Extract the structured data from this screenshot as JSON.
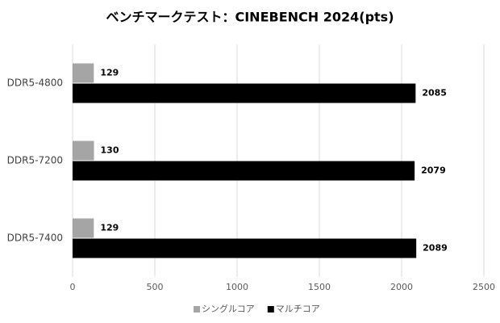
{
  "chart_data": {
    "type": "bar",
    "orientation": "horizontal",
    "title": "ベンチマークテスト：CINEBENCH 2024(pts)",
    "categories": [
      "DDR5-4800",
      "DDR5-7200",
      "DDR5-7400"
    ],
    "series": [
      {
        "name": "シングルコア",
        "color": "#a5a5a5",
        "values": [
          129,
          130,
          129
        ]
      },
      {
        "name": "マルチコア",
        "color": "#000000",
        "values": [
          2085,
          2079,
          2089
        ]
      }
    ],
    "xlim": [
      0,
      2500
    ],
    "xticks": [
      0,
      500,
      1000,
      1500,
      2000,
      2500
    ],
    "grid": true,
    "legend": "bottom"
  }
}
